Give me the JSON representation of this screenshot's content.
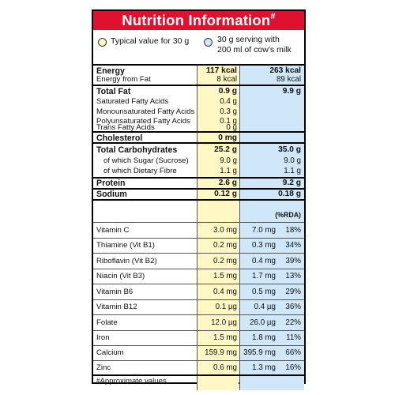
{
  "title": "Nutrition Information",
  "title_mark": "#",
  "legend": {
    "per30": "Typical value for 30 g",
    "milk_line1": "30 g serving with",
    "milk_line2": "200 ml of cow’s milk"
  },
  "energy": {
    "label": "Energy",
    "a": "117 kcal",
    "b": "263 kcal"
  },
  "energy_fat": {
    "label": "Energy from Fat",
    "a": "8 kcal",
    "b": "89 kcal"
  },
  "total_fat": {
    "label": "Total Fat",
    "a": "0.9 g",
    "b": "9.9 g"
  },
  "sat_fat": {
    "label": "Saturated Fatty Acids",
    "a": "0.4 g"
  },
  "mono_fat": {
    "label": "Monounsaturated Fatty Acids",
    "a": "0.3 g"
  },
  "poly_fat": {
    "label": "Polyunsaturated Fatty Acids",
    "a": "0.1 g"
  },
  "trans_fat": {
    "label": "Trans Fatty Acids",
    "a": "0 g"
  },
  "cholesterol": {
    "label": "Cholesterol",
    "a": "0 mg"
  },
  "carbs": {
    "label": "Total Carbohydrates",
    "a": "25.2 g",
    "b": "35.0 g"
  },
  "sugar": {
    "label": "of which Sugar (Sucrose)",
    "a": "9.0 g",
    "b": "9.0 g"
  },
  "fibre": {
    "label": "of which Dietary Fibre",
    "a": "1.1 g",
    "b": "1.1 g"
  },
  "protein": {
    "label": "Protein",
    "a": "2.6 g",
    "b": "9.2 g"
  },
  "sodium": {
    "label": "Sodium",
    "a": "0.12 g",
    "b": "0.18 g"
  },
  "rda_header": "(%RDA)",
  "vitamins": [
    {
      "label": "Vitamin C",
      "a": "3.0 mg",
      "b": "7.0 mg",
      "rda": "18%"
    },
    {
      "label": "Thiamine (Vit B1)",
      "a": "0.2 mg",
      "b": "0.3 mg",
      "rda": "34%"
    },
    {
      "label": "Riboflavin (Vit B2)",
      "a": "0.2 mg",
      "b": "0.4 mg",
      "rda": "39%"
    },
    {
      "label": "Niacin (Vit B3)",
      "a": "1.5 mg",
      "b": "1.7 mg",
      "rda": "13%"
    },
    {
      "label": "Vitamin B6",
      "a": "0.4 mg",
      "b": "0.5 mg",
      "rda": "29%"
    },
    {
      "label": "Vitamin B12",
      "a": "0.1 µg",
      "b": "0.4 µg",
      "rda": "36%"
    },
    {
      "label": "Folate",
      "a": "12.0 µg",
      "b": "26.0 µg",
      "rda": "22%"
    },
    {
      "label": "Iron",
      "a": "1.5 mg",
      "b": "1.8 mg",
      "rda": "11%"
    },
    {
      "label": "Calcium",
      "a": "159.9 mg",
      "b": "395.9 mg",
      "rda": "66%"
    },
    {
      "label": "Zinc",
      "a": "0.6 mg",
      "b": "1.3 mg",
      "rda": "16%"
    }
  ],
  "footnote_mark": "#",
  "footnote": "Approximate values",
  "colors": {
    "title_bg": "#e0102f",
    "col_30g": "#fff8c5",
    "col_milk": "#cfe7f8"
  }
}
